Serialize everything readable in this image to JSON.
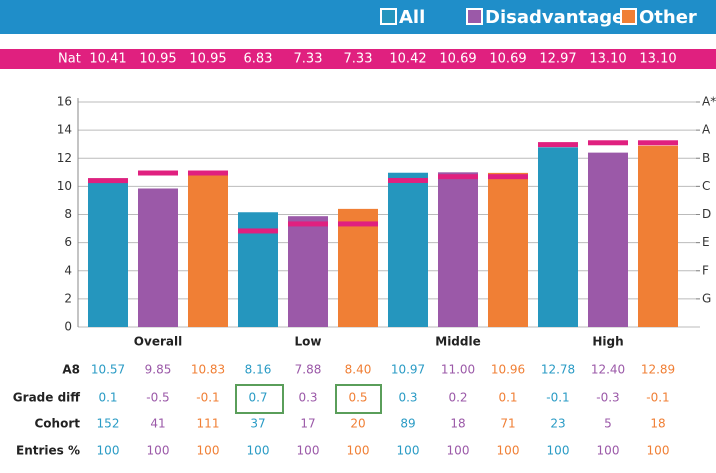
{
  "chart_data": {
    "type": "bar",
    "categories": [
      "Overall",
      "Low",
      "Middle",
      "High"
    ],
    "series": [
      {
        "name": "All",
        "color": "#2596be",
        "text_color": "#2a9bc5",
        "values": [
          10.57,
          8.16,
          10.97,
          12.78
        ],
        "value_labels": [
          "10.57",
          "8.16",
          "10.97",
          "12.78"
        ],
        "national": [
          10.41,
          6.83,
          10.42,
          12.97
        ],
        "national_labels": [
          "10.41",
          "6.83",
          "10.42",
          "12.97"
        ],
        "grade_diff": [
          0.1,
          0.7,
          0.3,
          -0.1
        ],
        "cohort": [
          152,
          37,
          89,
          23
        ],
        "entries": [
          100,
          100,
          100,
          100
        ]
      },
      {
        "name": "Disadvantaged",
        "color": "#9b59a8",
        "text_color": "#9b59a8",
        "values": [
          9.85,
          7.88,
          11.0,
          12.4
        ],
        "value_labels": [
          "9.85",
          "7.88",
          "11.00",
          "12.40"
        ],
        "national": [
          10.95,
          7.33,
          10.69,
          13.1
        ],
        "national_labels": [
          "10.95",
          "7.33",
          "10.69",
          "13.10"
        ],
        "grade_diff": [
          -0.5,
          0.3,
          0.2,
          -0.3
        ],
        "cohort": [
          41,
          17,
          18,
          5
        ],
        "entries": [
          100,
          100,
          100,
          100
        ]
      },
      {
        "name": "Other",
        "color": "#f07f35",
        "text_color": "#f07f35",
        "values": [
          10.83,
          8.4,
          10.96,
          12.89
        ],
        "value_labels": [
          "10.83",
          "8.40",
          "10.96",
          "12.89"
        ],
        "national": [
          10.95,
          7.33,
          10.69,
          13.1
        ],
        "national_labels": [
          "10.95",
          "7.33",
          "10.69",
          "13.10"
        ],
        "grade_diff": [
          -0.1,
          0.5,
          0.1,
          -0.1
        ],
        "cohort": [
          111,
          20,
          71,
          18
        ],
        "entries": [
          100,
          100,
          100,
          100
        ]
      }
    ],
    "national_label": "Nat",
    "national_color": "#e0207f",
    "row_labels": [
      "A8",
      "Grade diff",
      "Cohort",
      "Entries %"
    ],
    "ylim": [
      0,
      16
    ],
    "yticks": [
      0,
      2,
      4,
      6,
      8,
      10,
      12,
      14,
      16
    ],
    "grade_ticks": [
      {
        "value": 16,
        "label": "A*"
      },
      {
        "value": 14,
        "label": "A"
      },
      {
        "value": 12,
        "label": "B"
      },
      {
        "value": 10,
        "label": "C"
      },
      {
        "value": 8,
        "label": "D"
      },
      {
        "value": 6,
        "label": "E"
      },
      {
        "value": 4,
        "label": "F"
      },
      {
        "value": 2,
        "label": "G"
      }
    ],
    "grid": true
  }
}
